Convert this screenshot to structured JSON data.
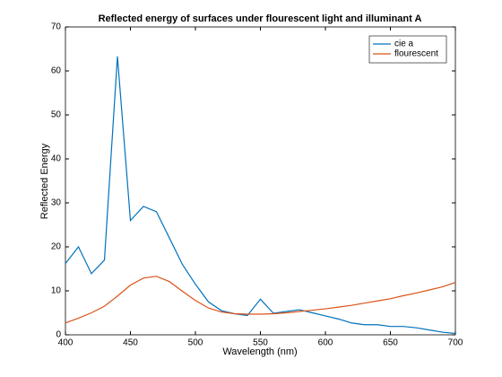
{
  "chart_data": {
    "type": "line",
    "title": "Reflected energy of surfaces under flourescent light and illuminant A",
    "xlabel": "Wavelength (nm)",
    "ylabel": "Reflected Energy",
    "x": [
      400,
      410,
      420,
      430,
      440,
      450,
      460,
      470,
      480,
      490,
      500,
      510,
      520,
      530,
      540,
      550,
      560,
      570,
      580,
      590,
      600,
      610,
      620,
      630,
      640,
      650,
      660,
      670,
      680,
      690,
      700
    ],
    "series": [
      {
        "name": "cie a",
        "color": "#0072bd",
        "values": [
          16.2,
          20,
          13.9,
          17,
          63.3,
          26,
          29.2,
          28,
          22,
          16,
          11.5,
          7.5,
          5.5,
          4.8,
          4.4,
          8.1,
          4.9,
          5.3,
          5.7,
          5,
          4.3,
          3.6,
          2.7,
          2.3,
          2.3,
          1.9,
          1.9,
          1.6,
          1.1,
          0.6,
          0.3
        ]
      },
      {
        "name": "flourescent",
        "color": "#d95319",
        "values": [
          2.7,
          3.8,
          5,
          6.5,
          8.8,
          11.3,
          12.9,
          13.3,
          12.1,
          9.9,
          7.8,
          6.1,
          5.2,
          4.8,
          4.7,
          4.7,
          4.8,
          5.0,
          5.3,
          5.6,
          5.9,
          6.3,
          6.7,
          7.2,
          7.7,
          8.2,
          8.9,
          9.5,
          10.2,
          10.9,
          11.9
        ]
      }
    ],
    "xlim": [
      400,
      700
    ],
    "xticks": [
      400,
      450,
      500,
      550,
      600,
      650,
      700
    ],
    "ylim": [
      0,
      70
    ],
    "yticks": [
      0,
      10,
      20,
      30,
      40,
      50,
      60,
      70
    ],
    "legend": "northeast"
  }
}
